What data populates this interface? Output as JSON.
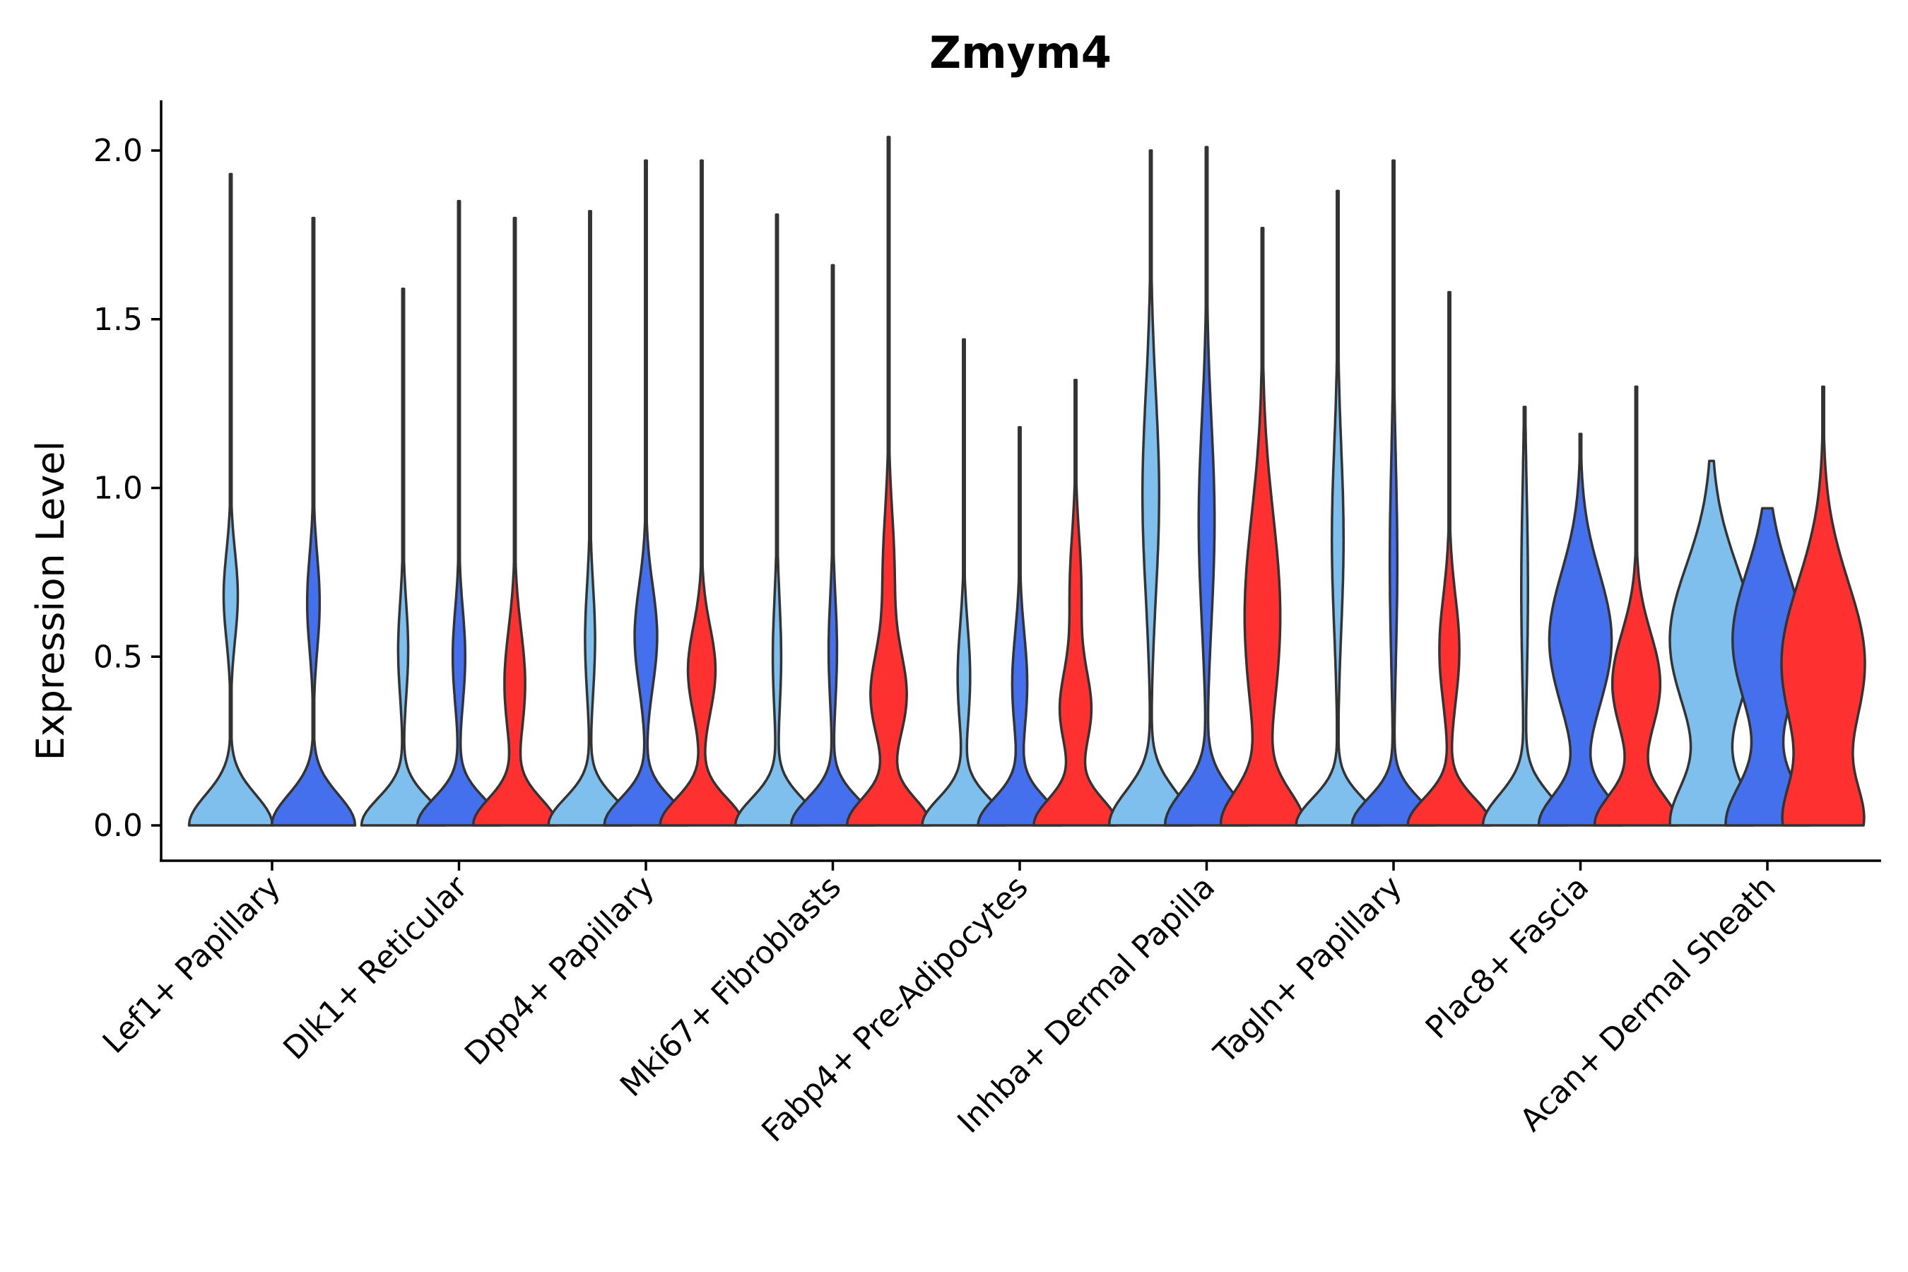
{
  "chart_data": {
    "type": "violin",
    "title": "Zmym4",
    "xlabel": "",
    "ylabel": "Expression Level",
    "ylim": [
      -0.1,
      2.15
    ],
    "yticks": [
      0.0,
      0.5,
      1.0,
      1.5,
      2.0
    ],
    "ytick_labels": [
      "0.0",
      "0.5",
      "1.0",
      "1.5",
      "2.0"
    ],
    "series_colors": [
      "#7fbfee",
      "#4470ee",
      "#ff3030"
    ],
    "categories": [
      {
        "label": "Lef1+ Papillary",
        "violins": [
          {
            "series": 0,
            "max": 1.93,
            "modes": [
              [
                0.0,
                1.0,
                0.09
              ],
              [
                0.68,
                0.17,
                0.13
              ]
            ]
          },
          {
            "series": 1,
            "max": 1.8,
            "modes": [
              [
                0.0,
                1.0,
                0.09
              ],
              [
                0.66,
                0.15,
                0.14
              ]
            ]
          }
        ]
      },
      {
        "label": "Dlk1+ Reticular",
        "violins": [
          {
            "series": 0,
            "max": 1.59,
            "modes": [
              [
                0.0,
                1.0,
                0.08
              ],
              [
                0.52,
                0.12,
                0.14
              ]
            ]
          },
          {
            "series": 1,
            "max": 1.85,
            "modes": [
              [
                0.0,
                1.0,
                0.08
              ],
              [
                0.5,
                0.15,
                0.14
              ]
            ]
          },
          {
            "series": 2,
            "max": 1.8,
            "modes": [
              [
                0.0,
                1.0,
                0.08
              ],
              [
                0.42,
                0.25,
                0.16
              ]
            ]
          }
        ]
      },
      {
        "label": "Dpp4+ Papillary",
        "violins": [
          {
            "series": 0,
            "max": 1.82,
            "modes": [
              [
                0.0,
                1.0,
                0.08
              ],
              [
                0.55,
                0.12,
                0.16
              ]
            ]
          },
          {
            "series": 1,
            "max": 1.97,
            "modes": [
              [
                0.0,
                1.0,
                0.08
              ],
              [
                0.56,
                0.27,
                0.15
              ]
            ]
          },
          {
            "series": 2,
            "max": 1.97,
            "modes": [
              [
                0.0,
                1.0,
                0.08
              ],
              [
                0.46,
                0.33,
                0.13
              ]
            ]
          }
        ]
      },
      {
        "label": "Mki67+ Fibroblasts",
        "violins": [
          {
            "series": 0,
            "max": 1.81,
            "modes": [
              [
                0.0,
                1.0,
                0.08
              ],
              [
                0.5,
                0.1,
                0.17
              ]
            ]
          },
          {
            "series": 1,
            "max": 1.66,
            "modes": [
              [
                0.0,
                1.0,
                0.08
              ],
              [
                0.52,
                0.1,
                0.16
              ]
            ]
          },
          {
            "series": 2,
            "max": 2.04,
            "modes": [
              [
                0.0,
                1.0,
                0.08
              ],
              [
                0.38,
                0.42,
                0.13
              ],
              [
                0.75,
                0.14,
                0.18
              ]
            ]
          }
        ]
      },
      {
        "label": "Fabp4+ Pre-Adipocytes",
        "violins": [
          {
            "series": 0,
            "max": 1.44,
            "modes": [
              [
                0.0,
                1.0,
                0.08
              ],
              [
                0.44,
                0.15,
                0.15
              ]
            ]
          },
          {
            "series": 1,
            "max": 1.18,
            "modes": [
              [
                0.0,
                1.0,
                0.08
              ],
              [
                0.42,
                0.18,
                0.15
              ]
            ]
          },
          {
            "series": 2,
            "max": 1.32,
            "modes": [
              [
                0.0,
                1.0,
                0.08
              ],
              [
                0.34,
                0.37,
                0.12
              ],
              [
                0.7,
                0.14,
                0.16
              ]
            ]
          }
        ]
      },
      {
        "label": "Inhba+ Dermal Papilla",
        "violins": [
          {
            "series": 0,
            "max": 2.0,
            "modes": [
              [
                0.0,
                1.0,
                0.1
              ],
              [
                0.98,
                0.2,
                0.3
              ]
            ]
          },
          {
            "series": 1,
            "max": 2.01,
            "modes": [
              [
                0.0,
                1.0,
                0.1
              ],
              [
                0.9,
                0.19,
                0.3
              ]
            ]
          },
          {
            "series": 2,
            "max": 1.77,
            "modes": [
              [
                0.0,
                1.0,
                0.1
              ],
              [
                0.62,
                0.45,
                0.3
              ]
            ]
          }
        ]
      },
      {
        "label": "Tagln+ Papillary",
        "violins": [
          {
            "series": 0,
            "max": 1.88,
            "modes": [
              [
                0.0,
                1.0,
                0.08
              ],
              [
                0.85,
                0.14,
                0.27
              ]
            ]
          },
          {
            "series": 1,
            "max": 1.97,
            "modes": [
              [
                0.0,
                1.0,
                0.08
              ],
              [
                0.78,
                0.09,
                0.3
              ]
            ]
          },
          {
            "series": 2,
            "max": 1.58,
            "modes": [
              [
                0.0,
                1.0,
                0.08
              ],
              [
                0.52,
                0.24,
                0.16
              ]
            ]
          }
        ]
      },
      {
        "label": "Plac8+ Fascia",
        "violins": [
          {
            "series": 0,
            "max": 1.24,
            "modes": [
              [
                0.0,
                1.0,
                0.09
              ],
              [
                0.7,
                0.08,
                0.3
              ]
            ]
          },
          {
            "series": 1,
            "max": 1.16,
            "modes": [
              [
                0.0,
                1.0,
                0.09
              ],
              [
                0.55,
                0.76,
                0.2
              ]
            ]
          },
          {
            "series": 2,
            "max": 1.3,
            "modes": [
              [
                0.0,
                1.0,
                0.09
              ],
              [
                0.42,
                0.58,
                0.15
              ]
            ]
          }
        ]
      },
      {
        "label": "Acan+ Dermal Sheath",
        "violins": [
          {
            "series": 0,
            "max": 1.08,
            "modes": [
              [
                0.0,
                1.0,
                0.12
              ],
              [
                0.55,
                1.05,
                0.22
              ]
            ]
          },
          {
            "series": 1,
            "max": 0.94,
            "modes": [
              [
                0.0,
                1.0,
                0.12
              ],
              [
                0.55,
                0.85,
                0.2
              ]
            ]
          },
          {
            "series": 2,
            "max": 1.3,
            "modes": [
              [
                0.0,
                1.0,
                0.12
              ],
              [
                0.48,
                1.2,
                0.24
              ]
            ]
          }
        ]
      }
    ]
  }
}
